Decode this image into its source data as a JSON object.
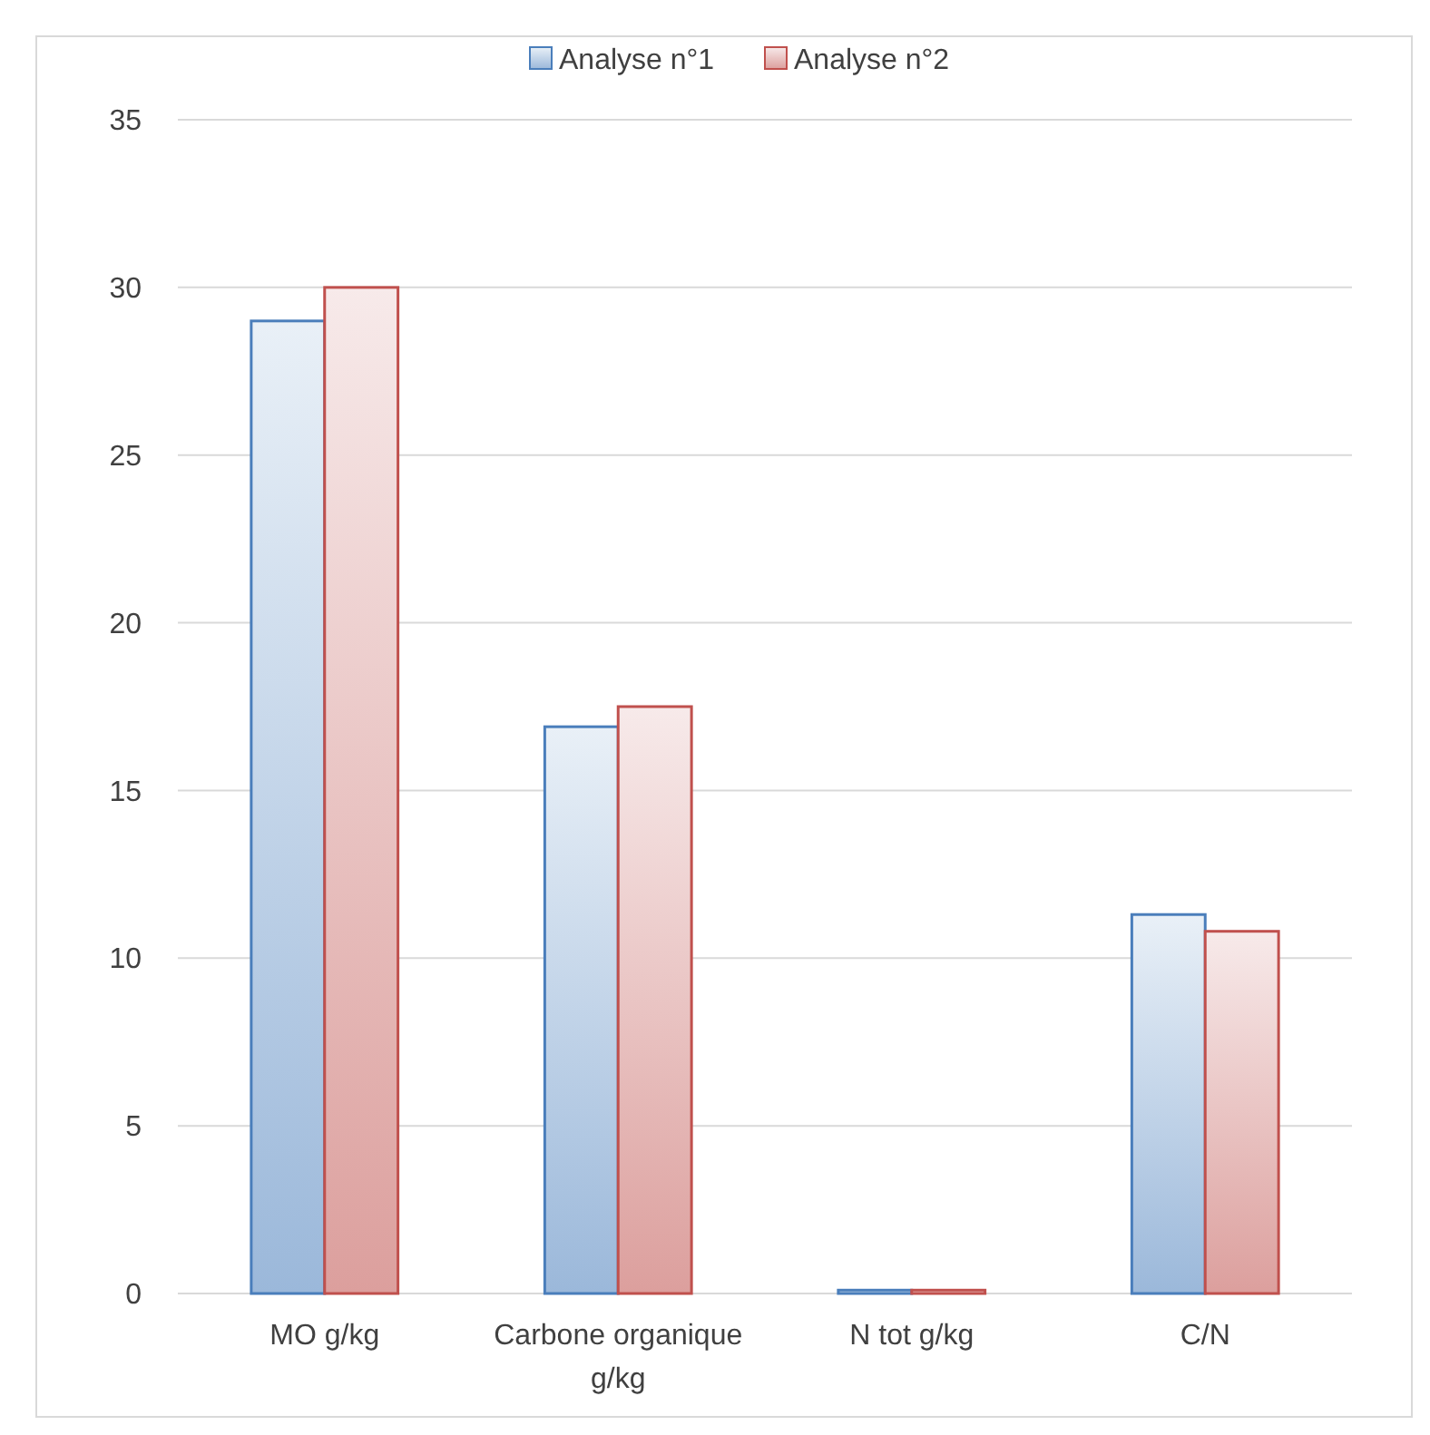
{
  "chart_data": {
    "type": "bar",
    "categories": [
      "MO g/kg",
      "Carbone organique g/kg",
      "N tot g/kg",
      "C/N"
    ],
    "series": [
      {
        "name": "Analyse n°1",
        "color": "#4a7ebb",
        "values": [
          29.0,
          16.9,
          0.1,
          11.3
        ]
      },
      {
        "name": "Analyse n°2",
        "color": "#c0504d",
        "values": [
          30.0,
          17.5,
          0.1,
          10.8
        ]
      }
    ],
    "ylim": [
      0,
      35
    ],
    "yticks": [
      0,
      5,
      10,
      15,
      20,
      25,
      30,
      35
    ],
    "grid": "y",
    "legend": "top"
  }
}
